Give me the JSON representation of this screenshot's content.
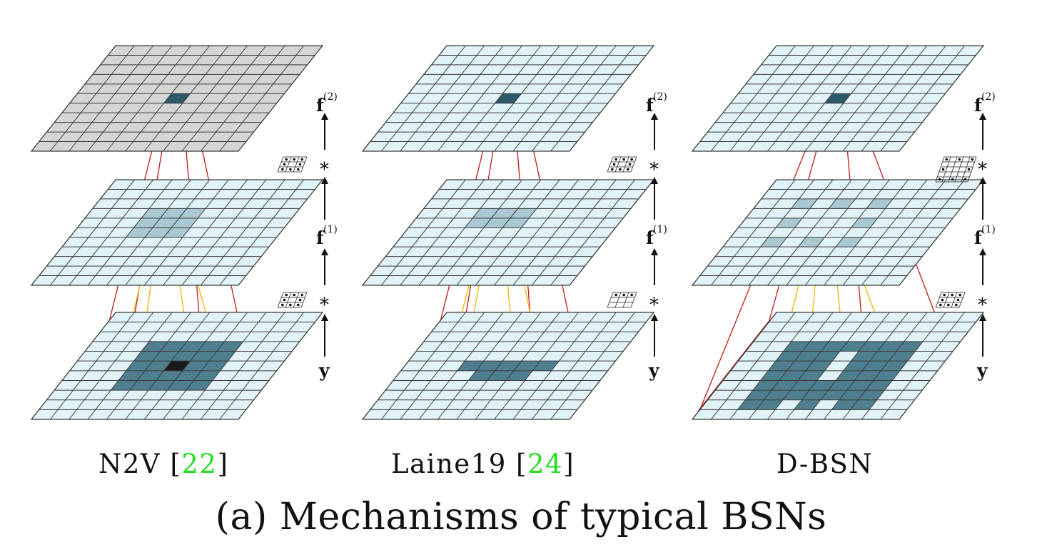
{
  "panels": [
    {
      "caption_name": "N2V",
      "caption_cite": "22",
      "top_grid_fill": "#d5d5d5",
      "kernel_top": "full",
      "kernel_bottom": "full",
      "mid_dark": [
        [
          3,
          3
        ],
        [
          3,
          4
        ],
        [
          3,
          5
        ],
        [
          4,
          3
        ],
        [
          4,
          4
        ],
        [
          4,
          5
        ],
        [
          5,
          3
        ],
        [
          5,
          4
        ],
        [
          5,
          5
        ]
      ],
      "bottom_dark": [
        [
          3,
          3
        ],
        [
          3,
          4
        ],
        [
          3,
          5
        ],
        [
          3,
          6
        ],
        [
          3,
          7
        ],
        [
          4,
          3
        ],
        [
          4,
          4
        ],
        [
          4,
          5
        ],
        [
          4,
          6
        ],
        [
          4,
          7
        ],
        [
          5,
          3
        ],
        [
          5,
          4
        ],
        [
          5,
          6
        ],
        [
          5,
          7
        ],
        [
          6,
          3
        ],
        [
          6,
          4
        ],
        [
          6,
          5
        ],
        [
          6,
          6
        ],
        [
          6,
          7
        ],
        [
          7,
          3
        ],
        [
          7,
          4
        ],
        [
          7,
          5
        ],
        [
          7,
          6
        ],
        [
          7,
          7
        ]
      ],
      "bottom_black": [
        [
          5,
          5
        ]
      ]
    },
    {
      "caption_name": "Laine19",
      "caption_cite": "24",
      "top_grid_fill": "#e2f3f8",
      "kernel_top": "full",
      "kernel_bottom": "upper",
      "mid_dark": [
        [
          3,
          3
        ],
        [
          3,
          4
        ],
        [
          3,
          5
        ],
        [
          4,
          3
        ],
        [
          4,
          4
        ],
        [
          4,
          5
        ]
      ],
      "bottom_dark": [
        [
          5,
          3
        ],
        [
          5,
          4
        ],
        [
          5,
          5
        ],
        [
          5,
          6
        ],
        [
          5,
          7
        ],
        [
          6,
          4
        ],
        [
          6,
          5
        ],
        [
          6,
          6
        ]
      ],
      "bottom_black": []
    },
    {
      "caption_name": "D-BSN",
      "caption_cite": "",
      "top_grid_fill": "#e2f3f8",
      "kernel_top": "dilated",
      "kernel_bottom": "full",
      "mid_dark": [
        [
          2,
          2
        ],
        [
          2,
          4
        ],
        [
          2,
          6
        ],
        [
          4,
          2
        ],
        [
          4,
          6
        ],
        [
          6,
          2
        ],
        [
          6,
          4
        ],
        [
          6,
          6
        ]
      ],
      "bottom_dark": [
        [
          3,
          2
        ],
        [
          3,
          3
        ],
        [
          3,
          4
        ],
        [
          3,
          5
        ],
        [
          3,
          6
        ],
        [
          3,
          7
        ],
        [
          3,
          8
        ],
        [
          4,
          2
        ],
        [
          4,
          4
        ],
        [
          4,
          6
        ],
        [
          4,
          8
        ],
        [
          5,
          2
        ],
        [
          5,
          3
        ],
        [
          5,
          4
        ],
        [
          5,
          6
        ],
        [
          5,
          7
        ],
        [
          5,
          8
        ],
        [
          6,
          2
        ],
        [
          6,
          4
        ],
        [
          6,
          6
        ],
        [
          6,
          8
        ],
        [
          7,
          2
        ],
        [
          7,
          3
        ],
        [
          7,
          4
        ],
        [
          7,
          5
        ],
        [
          7,
          6
        ],
        [
          7,
          7
        ],
        [
          7,
          8
        ],
        [
          8,
          3
        ],
        [
          8,
          4
        ],
        [
          8,
          5
        ],
        [
          8,
          6
        ],
        [
          8,
          7
        ],
        [
          9,
          2
        ],
        [
          9,
          3
        ],
        [
          9,
          5
        ],
        [
          9,
          7
        ],
        [
          9,
          8
        ],
        [
          4,
          3
        ],
        [
          4,
          7
        ],
        [
          6,
          3
        ],
        [
          6,
          7
        ],
        [
          8,
          2
        ],
        [
          8,
          8
        ]
      ],
      "bottom_black": []
    }
  ],
  "axis_labels": {
    "f2": "f",
    "f2_sup": "(2)",
    "f1": "f",
    "f1_sup": "(1)",
    "y": "y",
    "conv": "*"
  },
  "colors": {
    "grid_fill": "#e2f3f8",
    "grid_line": "#3a3a3a",
    "dark_cell": "#4f7f8f",
    "center_cell": "#2c5a69",
    "black_cell": "#1a1a1a",
    "red": "#c01a1a",
    "orange": "#f0b400",
    "cite": "#22dd22"
  },
  "main_caption": "(a) Mechanisms of typical BSNs"
}
